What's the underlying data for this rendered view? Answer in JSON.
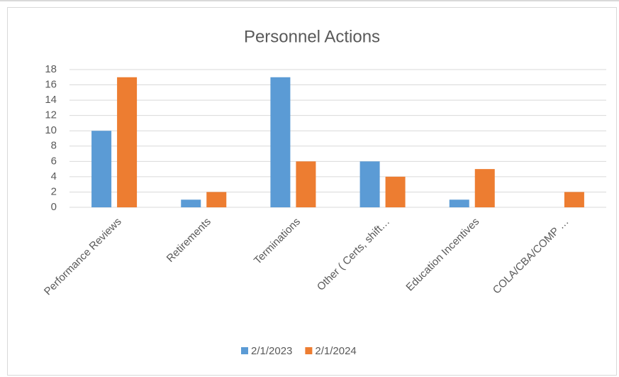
{
  "chart_data": {
    "type": "bar",
    "title": "Personnel Actions",
    "categories": [
      "Performance Reviews",
      "Retirements",
      "Terminations",
      "Other ( Certs, shift…",
      "Education Incentives",
      "COLA/CBA/COMP …"
    ],
    "series": [
      {
        "name": "2/1/2023",
        "color": "#5b9bd5",
        "values": [
          10,
          1,
          17,
          6,
          1,
          0
        ]
      },
      {
        "name": "2/1/2024",
        "color": "#ed7d31",
        "values": [
          17,
          2,
          6,
          4,
          5,
          2
        ]
      }
    ],
    "ylim": [
      0,
      18
    ],
    "yticks": [
      0,
      2,
      4,
      6,
      8,
      10,
      12,
      14,
      16,
      18
    ],
    "grid": true,
    "legend": "bottom"
  }
}
